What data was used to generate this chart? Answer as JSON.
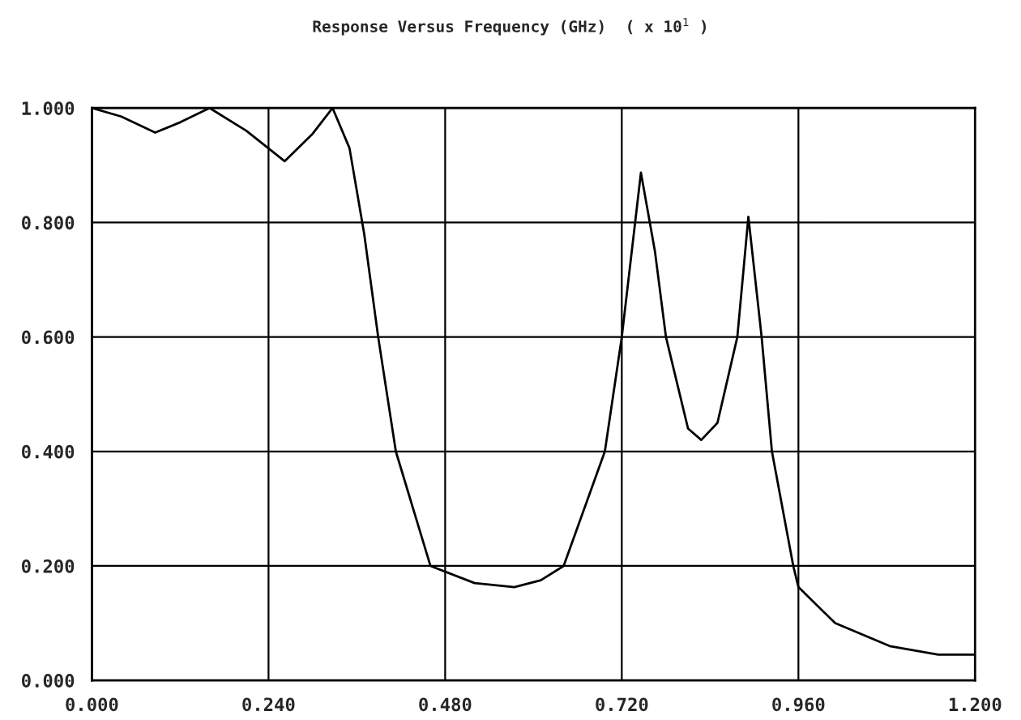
{
  "chart_data": {
    "type": "line",
    "title": "Response Versus Frequency (GHz)  ( x 10$^{1}$ )",
    "x": [
      0,
      0.04,
      0.086,
      0.12,
      0.16,
      0.21,
      0.262,
      0.3,
      0.327,
      0.35,
      0.37,
      0.389,
      0.413,
      0.46,
      0.52,
      0.574,
      0.61,
      0.641,
      0.697,
      0.72,
      0.746,
      0.765,
      0.78,
      0.81,
      0.828,
      0.85,
      0.877,
      0.892,
      0.91,
      0.924,
      0.953,
      0.96,
      1.01,
      1.084,
      1.15,
      1.2
    ],
    "series": [
      {
        "color": "#000000",
        "values": [
          1.0,
          0.985,
          0.957,
          0.975,
          1.0,
          0.96,
          0.907,
          0.955,
          1.0,
          0.93,
          0.78,
          0.6,
          0.4,
          0.2,
          0.17,
          0.163,
          0.175,
          0.2,
          0.4,
          0.6,
          0.887,
          0.75,
          0.6,
          0.44,
          0.42,
          0.45,
          0.6,
          0.81,
          0.6,
          0.4,
          0.2,
          0.163,
          0.1,
          0.06,
          0.045,
          0.045
        ]
      }
    ],
    "xlim": [
      0,
      1.2
    ],
    "xticks": [
      {
        "value": 0,
        "label": "0.000"
      },
      {
        "value": 0.24,
        "label": "0.240"
      },
      {
        "value": 0.48,
        "label": "0.480"
      },
      {
        "value": 0.72,
        "label": "0.720"
      },
      {
        "value": 0.96,
        "label": "0.960"
      },
      {
        "value": 1.2,
        "label": "1.200"
      }
    ],
    "ylim": [
      0,
      1
    ],
    "yticks": [
      {
        "value": 0,
        "label": "0.000"
      },
      {
        "value": 0.2,
        "label": "0.200"
      },
      {
        "value": 0.4,
        "label": "0.400"
      },
      {
        "value": 0.6,
        "label": "0.600"
      },
      {
        "value": 0.8,
        "label": "0.800"
      },
      {
        "value": 1,
        "label": "1.000"
      }
    ],
    "grid": true,
    "line_style": "solid"
  }
}
